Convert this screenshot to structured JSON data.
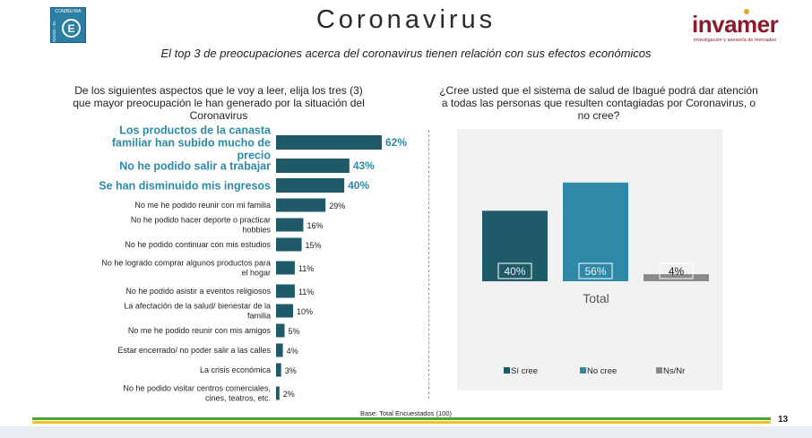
{
  "header": {
    "logo_left_top": "COMBEIMA",
    "logo_left_side": "RADIO · EL",
    "logo_left_letter": "E",
    "title": "Coronavirus",
    "subtitle": "El top 3 de preocupaciones acerca del coronavirus tienen relación con sus efectos económicos",
    "brand_name": "invamer",
    "brand_tagline": "investigación y asesoría de mercadeo"
  },
  "left_question": "De los siguientes aspectos que le voy a leer, elija los tres (3) que mayor preocupación le han generado por la situación del Coronavirus",
  "right_question": "¿Cree usted que el sistema de salud de Ibagué podrá dar atención a todas las personas que resulten contagiadas por Coronavirus, o no cree?",
  "colors": {
    "dark_teal": "#1f5a68",
    "teal": "#2e8aa6",
    "gray": "#8a8a8a",
    "highlight_text": "#2e8aa6",
    "panel_bg": "#f2f2f2"
  },
  "chart_data": [
    {
      "type": "bar",
      "orientation": "horizontal",
      "categories": [
        "Los productos de la canasta familiar han subido mucho de precio",
        "No he podido salir a trabajar",
        "Se han disminuido mis ingresos",
        "No me he podido reunir con mi familia",
        "No he podido hacer deporte o practicar hobbies",
        "No he podido continuar con mis estudios",
        "No he logrado comprar algunos productos para el hogar",
        "No he podido asistir a eventos religiosos",
        "La afectación de la salud/ bienestar de la familia",
        "No me he podido reunir con mis amigos",
        "Estar encerrado/ no poder salir a las calles",
        "La crisis económica",
        "No he podido visitar centros comerciales, cines, teatros, etc."
      ],
      "values": [
        62,
        43,
        40,
        29,
        16,
        15,
        11,
        11,
        10,
        5,
        4,
        3,
        2
      ],
      "value_labels": [
        "62%",
        "43%",
        "40%",
        "29%",
        "16%",
        "15%",
        "11%",
        "11%",
        "10%",
        "5%",
        "4%",
        "3%",
        "2%"
      ],
      "highlighted": [
        true,
        true,
        true,
        false,
        false,
        false,
        false,
        false,
        false,
        false,
        false,
        false,
        false
      ],
      "xlim": [
        0,
        62
      ]
    },
    {
      "type": "bar",
      "orientation": "vertical",
      "categories": [
        "Total"
      ],
      "series": [
        {
          "name": "Sí cree",
          "values": [
            40
          ],
          "label": "40%"
        },
        {
          "name": "No cree",
          "values": [
            56
          ],
          "label": "56%"
        },
        {
          "name": "Ns/Nr",
          "values": [
            4
          ],
          "label": "4%"
        }
      ],
      "ylim": [
        0,
        62
      ],
      "legend": "bottom"
    }
  ],
  "footer": {
    "base": "Base: Total Encuestados (100)",
    "page_number": "13"
  }
}
